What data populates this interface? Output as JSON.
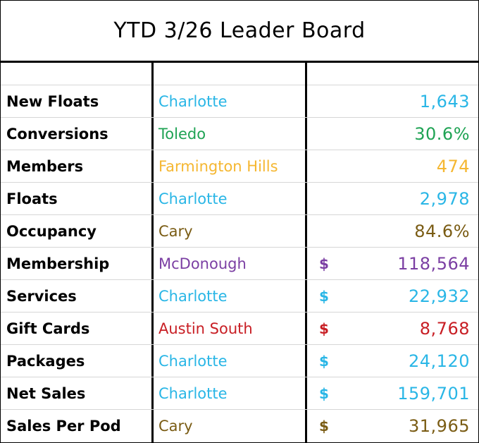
{
  "title": "YTD 3/26 Leader Board",
  "colors": {
    "blue": "#29b6e6",
    "green": "#1fa354",
    "orange": "#f5b731",
    "brown": "#7a5c14",
    "purple": "#7b3fa3",
    "red": "#c81e24"
  },
  "rows": [
    {
      "metric": "New Floats",
      "location": "Charlotte",
      "currency": "",
      "value": "1,643",
      "color": "#29b6e6"
    },
    {
      "metric": "Conversions",
      "location": "Toledo",
      "currency": "",
      "value": "30.6%",
      "color": "#1fa354"
    },
    {
      "metric": "Members",
      "location": "Farmington Hills",
      "currency": "",
      "value": "474",
      "color": "#f5b731"
    },
    {
      "metric": "Floats",
      "location": "Charlotte",
      "currency": "",
      "value": "2,978",
      "color": "#29b6e6"
    },
    {
      "metric": "Occupancy",
      "location": "Cary",
      "currency": "",
      "value": "84.6%",
      "color": "#7a5c14"
    },
    {
      "metric": "Membership",
      "location": "McDonough",
      "currency": "$",
      "value": "118,564",
      "color": "#7b3fa3"
    },
    {
      "metric": "Services",
      "location": "Charlotte",
      "currency": "$",
      "value": "22,932",
      "color": "#29b6e6"
    },
    {
      "metric": "Gift Cards",
      "location": "Austin South",
      "currency": "$",
      "value": "8,768",
      "color": "#c81e24"
    },
    {
      "metric": "Packages",
      "location": "Charlotte",
      "currency": "$",
      "value": "24,120",
      "color": "#29b6e6"
    },
    {
      "metric": "Net Sales",
      "location": "Charlotte",
      "currency": "$",
      "value": "159,701",
      "color": "#29b6e6"
    },
    {
      "metric": "Sales Per Pod",
      "location": "Cary",
      "currency": "$",
      "value": "31,965",
      "color": "#7a5c14"
    }
  ]
}
